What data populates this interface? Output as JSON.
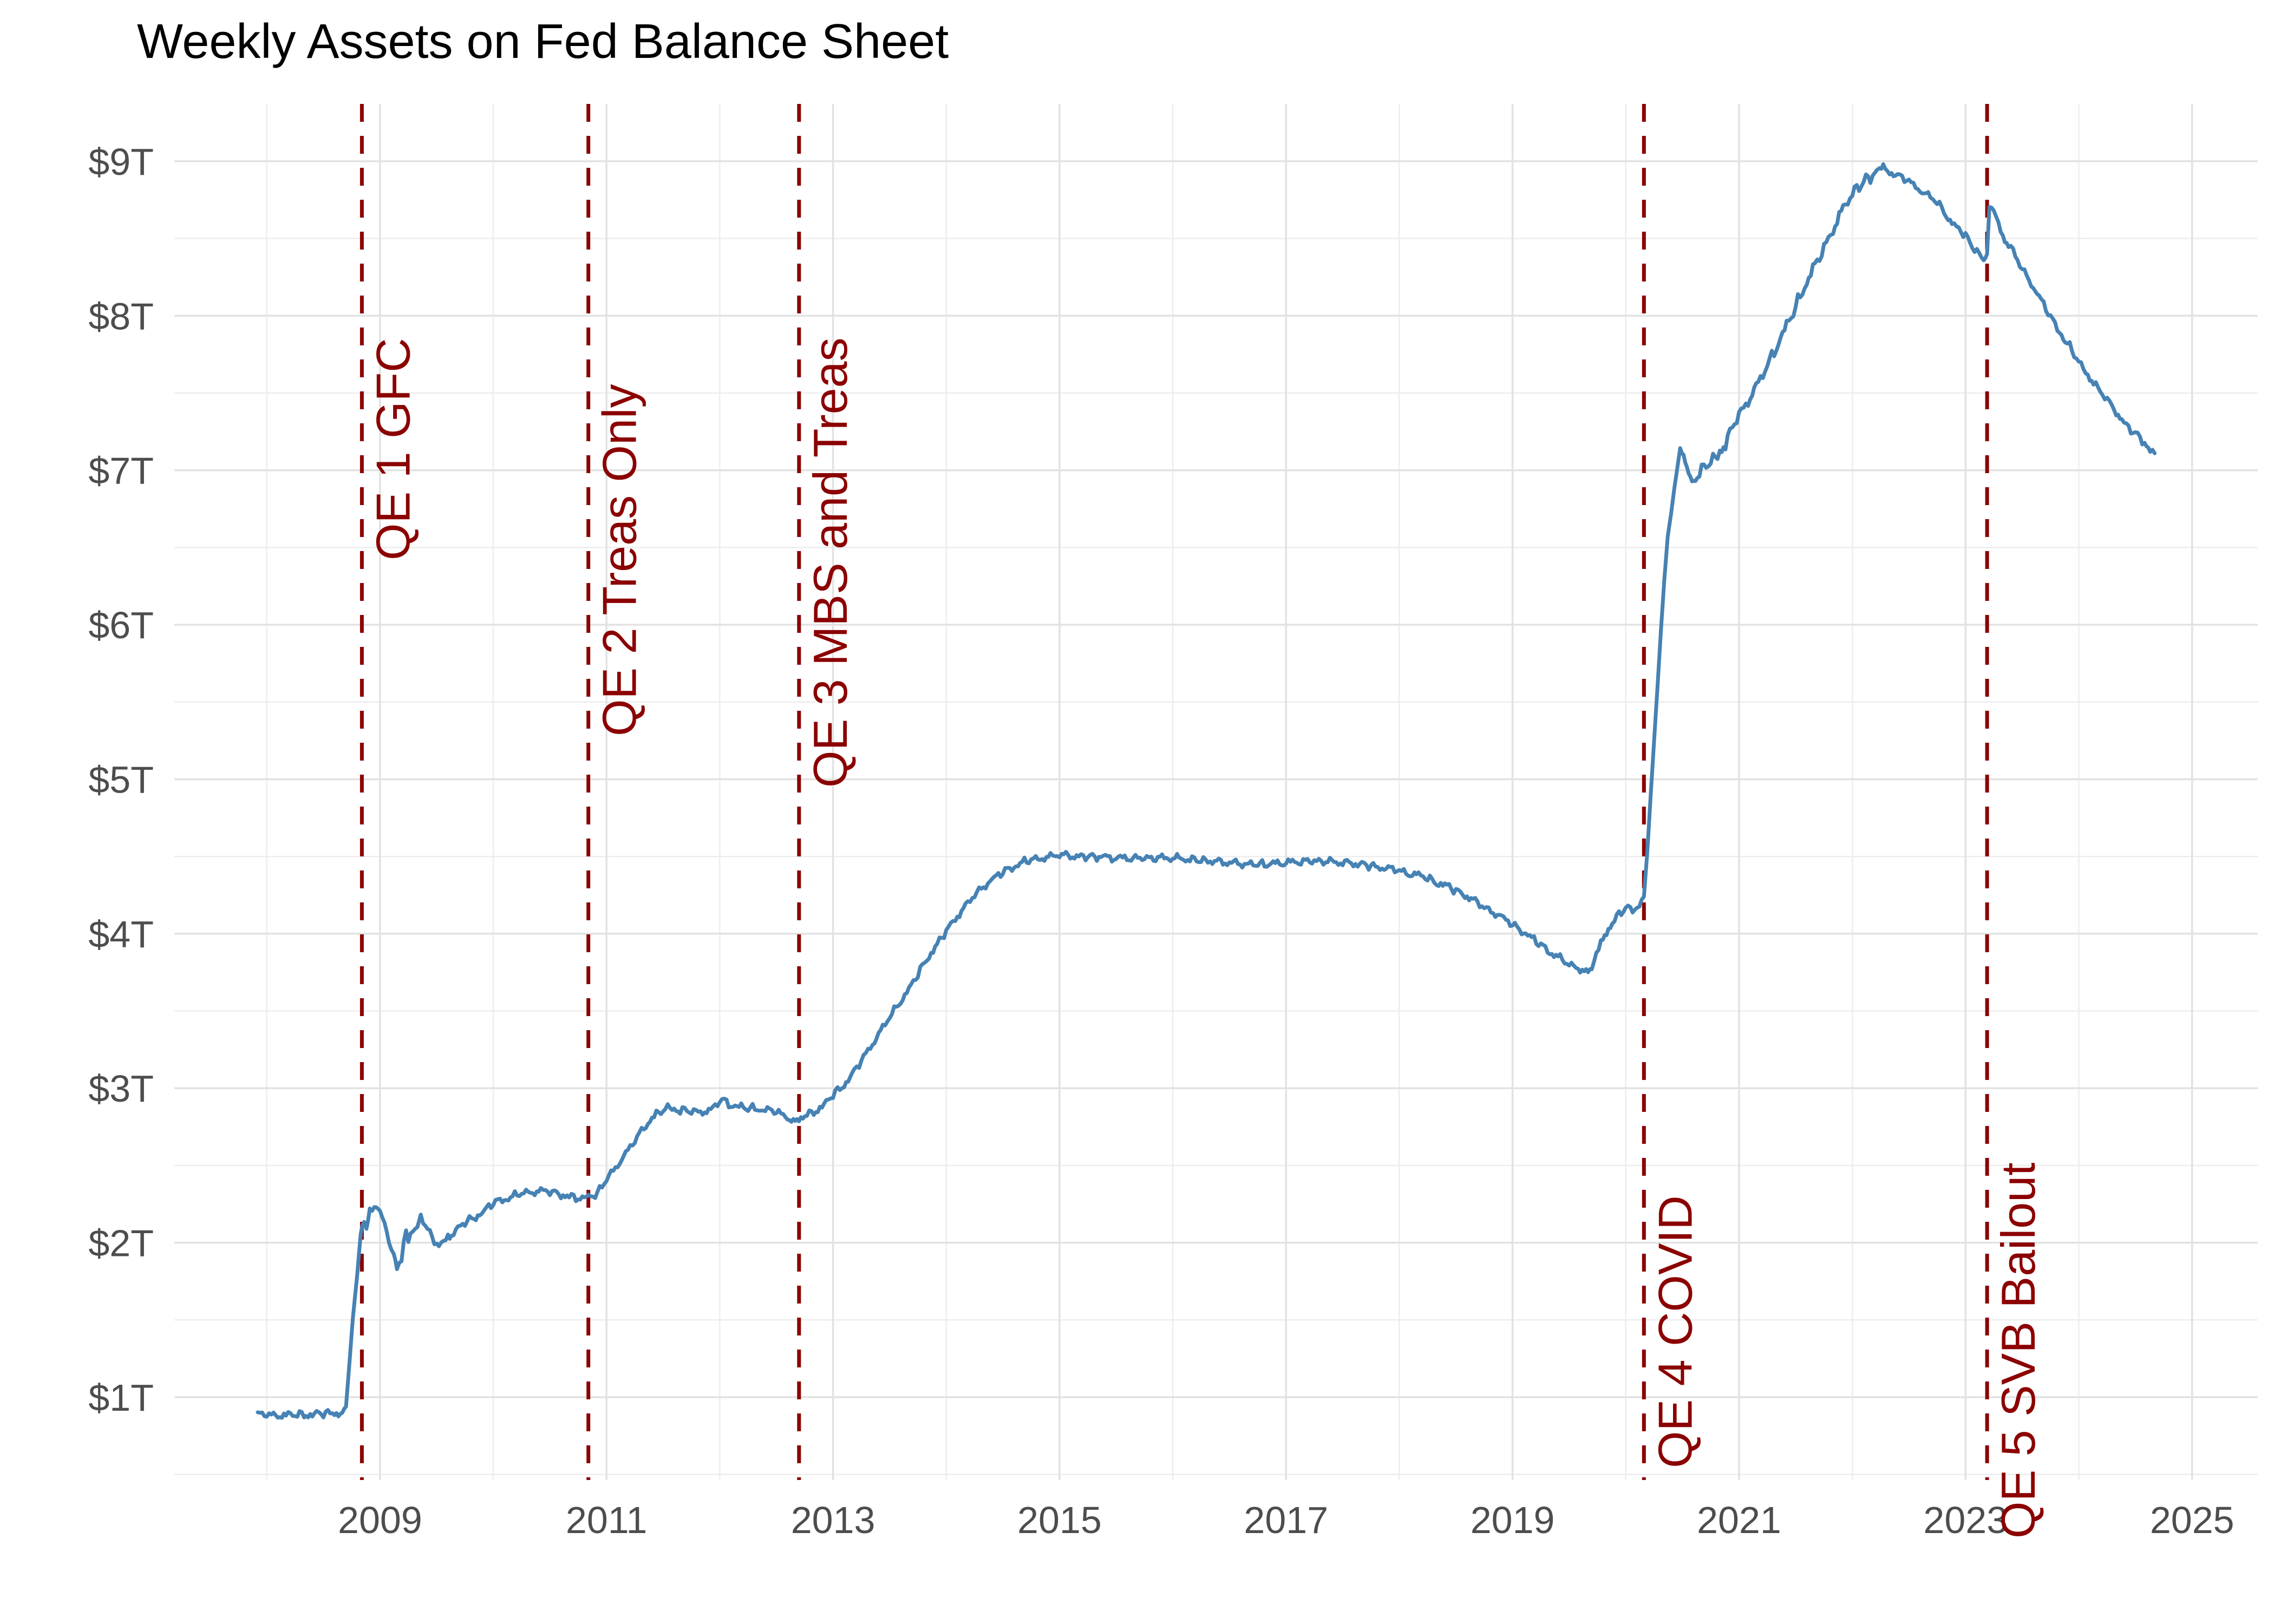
{
  "chart_data": {
    "type": "line",
    "title": "Weekly Assets on Fed Balance Sheet",
    "unit": "trillions of US dollars",
    "background": "#FFFFFF",
    "text_color": "#4D4D4D",
    "grid": {
      "major_color": "#E2E2E2",
      "minor_color": "#EDEDED",
      "on": true
    },
    "x_axis": {
      "range": [
        2007.184,
        2025.58
      ],
      "ticks": [
        {
          "label": "2009",
          "value": 2009
        },
        {
          "label": "2011",
          "value": 2011
        },
        {
          "label": "2013",
          "value": 2013
        },
        {
          "label": "2015",
          "value": 2015
        },
        {
          "label": "2017",
          "value": 2017
        },
        {
          "label": "2019",
          "value": 2019
        },
        {
          "label": "2021",
          "value": 2021
        },
        {
          "label": "2023",
          "value": 2023
        },
        {
          "label": "2025",
          "value": 2025
        }
      ],
      "minor_tick_values": [
        2008,
        2010,
        2012,
        2014,
        2016,
        2018,
        2020,
        2022,
        2024
      ]
    },
    "y_axis": {
      "range": [
        0.464,
        9.371
      ],
      "ticks": [
        {
          "label": "$1T",
          "value": 1
        },
        {
          "label": "$2T",
          "value": 2
        },
        {
          "label": "$3T",
          "value": 3
        },
        {
          "label": "$4T",
          "value": 4
        },
        {
          "label": "$5T",
          "value": 5
        },
        {
          "label": "$6T",
          "value": 6
        },
        {
          "label": "$7T",
          "value": 7
        },
        {
          "label": "$8T",
          "value": 8
        },
        {
          "label": "$9T",
          "value": 9
        }
      ],
      "minor_tick_values": [
        0.5,
        1.5,
        2.5,
        3.5,
        4.5,
        5.5,
        6.5,
        7.5,
        8.5
      ]
    },
    "events": [
      {
        "label": "QE 1 GFC",
        "x": 2008.84
      },
      {
        "label": "QE 2 Treas Only",
        "x": 2010.84
      },
      {
        "label": "QE 3 MBS and Treas",
        "x": 2012.7
      },
      {
        "label": "QE 4 COVID",
        "x": 2020.16
      },
      {
        "label": "QE 5 SVB Bailout",
        "x": 2023.19
      }
    ],
    "event_style": {
      "color": "#8B0000",
      "dash": [
        33,
        26
      ],
      "stroke_width": 7
    },
    "series": [
      {
        "color": "#4682B4",
        "stroke_width": 7,
        "noise_amplitude": 0.016,
        "points": [
          [
            2007.92,
            0.891
          ],
          [
            2008.0,
            0.888
          ],
          [
            2008.08,
            0.885
          ],
          [
            2008.17,
            0.889
          ],
          [
            2008.25,
            0.886
          ],
          [
            2008.33,
            0.889
          ],
          [
            2008.42,
            0.893
          ],
          [
            2008.5,
            0.896
          ],
          [
            2008.58,
            0.899
          ],
          [
            2008.65,
            0.905
          ],
          [
            2008.7,
            0.94
          ],
          [
            2008.73,
            1.22
          ],
          [
            2008.76,
            1.51
          ],
          [
            2008.8,
            1.8
          ],
          [
            2008.83,
            2.07
          ],
          [
            2008.86,
            2.14
          ],
          [
            2008.88,
            2.09
          ],
          [
            2008.91,
            2.2
          ],
          [
            2008.95,
            2.25
          ],
          [
            2009.0,
            2.22
          ],
          [
            2009.04,
            2.13
          ],
          [
            2009.08,
            2.01
          ],
          [
            2009.12,
            1.93
          ],
          [
            2009.15,
            1.85
          ],
          [
            2009.19,
            1.88
          ],
          [
            2009.21,
            2.01
          ],
          [
            2009.23,
            2.08
          ],
          [
            2009.25,
            2.03
          ],
          [
            2009.29,
            2.06
          ],
          [
            2009.33,
            2.11
          ],
          [
            2009.36,
            2.17
          ],
          [
            2009.4,
            2.12
          ],
          [
            2009.44,
            2.06
          ],
          [
            2009.48,
            2.01
          ],
          [
            2009.52,
            1.98
          ],
          [
            2009.56,
            2.0
          ],
          [
            2009.6,
            2.06
          ],
          [
            2009.63,
            2.05
          ],
          [
            2009.67,
            2.08
          ],
          [
            2009.71,
            2.11
          ],
          [
            2009.75,
            2.13
          ],
          [
            2009.79,
            2.15
          ],
          [
            2009.83,
            2.16
          ],
          [
            2009.88,
            2.19
          ],
          [
            2009.92,
            2.21
          ],
          [
            2009.96,
            2.23
          ],
          [
            2010.0,
            2.26
          ],
          [
            2010.08,
            2.28
          ],
          [
            2010.17,
            2.3
          ],
          [
            2010.25,
            2.32
          ],
          [
            2010.33,
            2.33
          ],
          [
            2010.42,
            2.34
          ],
          [
            2010.5,
            2.33
          ],
          [
            2010.58,
            2.32
          ],
          [
            2010.67,
            2.3
          ],
          [
            2010.75,
            2.29
          ],
          [
            2010.84,
            2.29
          ],
          [
            2010.92,
            2.32
          ],
          [
            2011.0,
            2.41
          ],
          [
            2011.08,
            2.49
          ],
          [
            2011.17,
            2.58
          ],
          [
            2011.25,
            2.66
          ],
          [
            2011.33,
            2.75
          ],
          [
            2011.42,
            2.82
          ],
          [
            2011.5,
            2.86
          ],
          [
            2011.54,
            2.87
          ],
          [
            2011.58,
            2.88
          ],
          [
            2011.63,
            2.86
          ],
          [
            2011.67,
            2.86
          ],
          [
            2011.75,
            2.85
          ],
          [
            2011.83,
            2.85
          ],
          [
            2011.92,
            2.86
          ],
          [
            2011.98,
            2.9
          ],
          [
            2012.02,
            2.93
          ],
          [
            2012.06,
            2.91
          ],
          [
            2012.1,
            2.89
          ],
          [
            2012.17,
            2.88
          ],
          [
            2012.25,
            2.87
          ],
          [
            2012.33,
            2.87
          ],
          [
            2012.42,
            2.86
          ],
          [
            2012.5,
            2.85
          ],
          [
            2012.58,
            2.82
          ],
          [
            2012.65,
            2.8
          ],
          [
            2012.7,
            2.81
          ],
          [
            2012.75,
            2.82
          ],
          [
            2012.83,
            2.85
          ],
          [
            2012.92,
            2.89
          ],
          [
            2013.0,
            2.96
          ],
          [
            2013.08,
            3.01
          ],
          [
            2013.17,
            3.09
          ],
          [
            2013.25,
            3.18
          ],
          [
            2013.33,
            3.27
          ],
          [
            2013.42,
            3.37
          ],
          [
            2013.5,
            3.46
          ],
          [
            2013.58,
            3.55
          ],
          [
            2013.67,
            3.64
          ],
          [
            2013.75,
            3.74
          ],
          [
            2013.83,
            3.84
          ],
          [
            2013.92,
            3.93
          ],
          [
            2014.0,
            4.02
          ],
          [
            2014.08,
            4.1
          ],
          [
            2014.17,
            4.18
          ],
          [
            2014.25,
            4.25
          ],
          [
            2014.33,
            4.31
          ],
          [
            2014.42,
            4.36
          ],
          [
            2014.5,
            4.4
          ],
          [
            2014.58,
            4.43
          ],
          [
            2014.67,
            4.46
          ],
          [
            2014.75,
            4.48
          ],
          [
            2014.83,
            4.49
          ],
          [
            2014.92,
            4.5
          ],
          [
            2015.0,
            4.51
          ],
          [
            2015.17,
            4.5
          ],
          [
            2015.33,
            4.5
          ],
          [
            2015.5,
            4.49
          ],
          [
            2015.67,
            4.49
          ],
          [
            2015.83,
            4.49
          ],
          [
            2016.0,
            4.49
          ],
          [
            2016.17,
            4.48
          ],
          [
            2016.33,
            4.47
          ],
          [
            2016.5,
            4.46
          ],
          [
            2016.67,
            4.45
          ],
          [
            2016.83,
            4.45
          ],
          [
            2017.0,
            4.46
          ],
          [
            2017.17,
            4.47
          ],
          [
            2017.33,
            4.47
          ],
          [
            2017.5,
            4.46
          ],
          [
            2017.67,
            4.45
          ],
          [
            2017.75,
            4.44
          ],
          [
            2017.83,
            4.43
          ],
          [
            2017.92,
            4.42
          ],
          [
            2018.0,
            4.41
          ],
          [
            2018.08,
            4.39
          ],
          [
            2018.17,
            4.38
          ],
          [
            2018.25,
            4.36
          ],
          [
            2018.33,
            4.33
          ],
          [
            2018.42,
            4.31
          ],
          [
            2018.5,
            4.28
          ],
          [
            2018.58,
            4.25
          ],
          [
            2018.67,
            4.21
          ],
          [
            2018.75,
            4.17
          ],
          [
            2018.83,
            4.14
          ],
          [
            2018.92,
            4.1
          ],
          [
            2019.0,
            4.06
          ],
          [
            2019.08,
            4.02
          ],
          [
            2019.17,
            3.97
          ],
          [
            2019.25,
            3.93
          ],
          [
            2019.33,
            3.88
          ],
          [
            2019.42,
            3.84
          ],
          [
            2019.5,
            3.8
          ],
          [
            2019.58,
            3.78
          ],
          [
            2019.65,
            3.76
          ],
          [
            2019.7,
            3.77
          ],
          [
            2019.74,
            3.87
          ],
          [
            2019.78,
            3.96
          ],
          [
            2019.83,
            4.02
          ],
          [
            2019.88,
            4.07
          ],
          [
            2019.92,
            4.11
          ],
          [
            2019.96,
            4.14
          ],
          [
            2020.0,
            4.17
          ],
          [
            2020.04,
            4.16
          ],
          [
            2020.08,
            4.16
          ],
          [
            2020.12,
            4.17
          ],
          [
            2020.16,
            4.24
          ],
          [
            2020.19,
            4.53
          ],
          [
            2020.22,
            4.9
          ],
          [
            2020.25,
            5.25
          ],
          [
            2020.28,
            5.6
          ],
          [
            2020.31,
            5.96
          ],
          [
            2020.34,
            6.29
          ],
          [
            2020.37,
            6.57
          ],
          [
            2020.4,
            6.72
          ],
          [
            2020.43,
            6.89
          ],
          [
            2020.46,
            7.04
          ],
          [
            2020.48,
            7.16
          ],
          [
            2020.51,
            7.1
          ],
          [
            2020.54,
            7.0
          ],
          [
            2020.57,
            6.94
          ],
          [
            2020.6,
            6.92
          ],
          [
            2020.63,
            6.96
          ],
          [
            2020.67,
            7.0
          ],
          [
            2020.71,
            7.04
          ],
          [
            2020.75,
            7.05
          ],
          [
            2020.79,
            7.08
          ],
          [
            2020.83,
            7.13
          ],
          [
            2020.88,
            7.18
          ],
          [
            2020.92,
            7.24
          ],
          [
            2020.96,
            7.31
          ],
          [
            2021.0,
            7.36
          ],
          [
            2021.08,
            7.45
          ],
          [
            2021.17,
            7.56
          ],
          [
            2021.25,
            7.68
          ],
          [
            2021.33,
            7.8
          ],
          [
            2021.42,
            7.93
          ],
          [
            2021.5,
            8.06
          ],
          [
            2021.58,
            8.19
          ],
          [
            2021.67,
            8.32
          ],
          [
            2021.75,
            8.44
          ],
          [
            2021.83,
            8.56
          ],
          [
            2021.92,
            8.69
          ],
          [
            2022.0,
            8.79
          ],
          [
            2022.06,
            8.84
          ],
          [
            2022.12,
            8.88
          ],
          [
            2022.18,
            8.91
          ],
          [
            2022.24,
            8.94
          ],
          [
            2022.29,
            8.96
          ],
          [
            2022.33,
            8.93
          ],
          [
            2022.38,
            8.92
          ],
          [
            2022.42,
            8.9
          ],
          [
            2022.46,
            8.89
          ],
          [
            2022.5,
            8.87
          ],
          [
            2022.54,
            8.85
          ],
          [
            2022.58,
            8.83
          ],
          [
            2022.63,
            8.8
          ],
          [
            2022.67,
            8.78
          ],
          [
            2022.71,
            8.76
          ],
          [
            2022.75,
            8.73
          ],
          [
            2022.79,
            8.7
          ],
          [
            2022.83,
            8.65
          ],
          [
            2022.88,
            8.61
          ],
          [
            2022.92,
            8.57
          ],
          [
            2022.96,
            8.55
          ],
          [
            2023.0,
            8.52
          ],
          [
            2023.04,
            8.47
          ],
          [
            2023.08,
            8.43
          ],
          [
            2023.12,
            8.4
          ],
          [
            2023.16,
            8.36
          ],
          [
            2023.19,
            8.4
          ],
          [
            2023.21,
            8.73
          ],
          [
            2023.23,
            8.7
          ],
          [
            2023.25,
            8.68
          ],
          [
            2023.27,
            8.63
          ],
          [
            2023.29,
            8.6
          ],
          [
            2023.33,
            8.52
          ],
          [
            2023.38,
            8.46
          ],
          [
            2023.42,
            8.42
          ],
          [
            2023.46,
            8.36
          ],
          [
            2023.5,
            8.3
          ],
          [
            2023.54,
            8.26
          ],
          [
            2023.58,
            8.21
          ],
          [
            2023.63,
            8.15
          ],
          [
            2023.67,
            8.1
          ],
          [
            2023.71,
            8.05
          ],
          [
            2023.75,
            7.99
          ],
          [
            2023.79,
            7.95
          ],
          [
            2023.83,
            7.9
          ],
          [
            2023.88,
            7.84
          ],
          [
            2023.92,
            7.8
          ],
          [
            2023.96,
            7.75
          ],
          [
            2024.0,
            7.7
          ],
          [
            2024.04,
            7.66
          ],
          [
            2024.08,
            7.62
          ],
          [
            2024.13,
            7.57
          ],
          [
            2024.17,
            7.53
          ],
          [
            2024.21,
            7.49
          ],
          [
            2024.25,
            7.46
          ],
          [
            2024.29,
            7.42
          ],
          [
            2024.33,
            7.38
          ],
          [
            2024.38,
            7.33
          ],
          [
            2024.42,
            7.29
          ],
          [
            2024.46,
            7.26
          ],
          [
            2024.5,
            7.24
          ],
          [
            2024.54,
            7.21
          ],
          [
            2024.58,
            7.18
          ],
          [
            2024.63,
            7.14
          ],
          [
            2024.67,
            7.11
          ]
        ]
      }
    ]
  }
}
